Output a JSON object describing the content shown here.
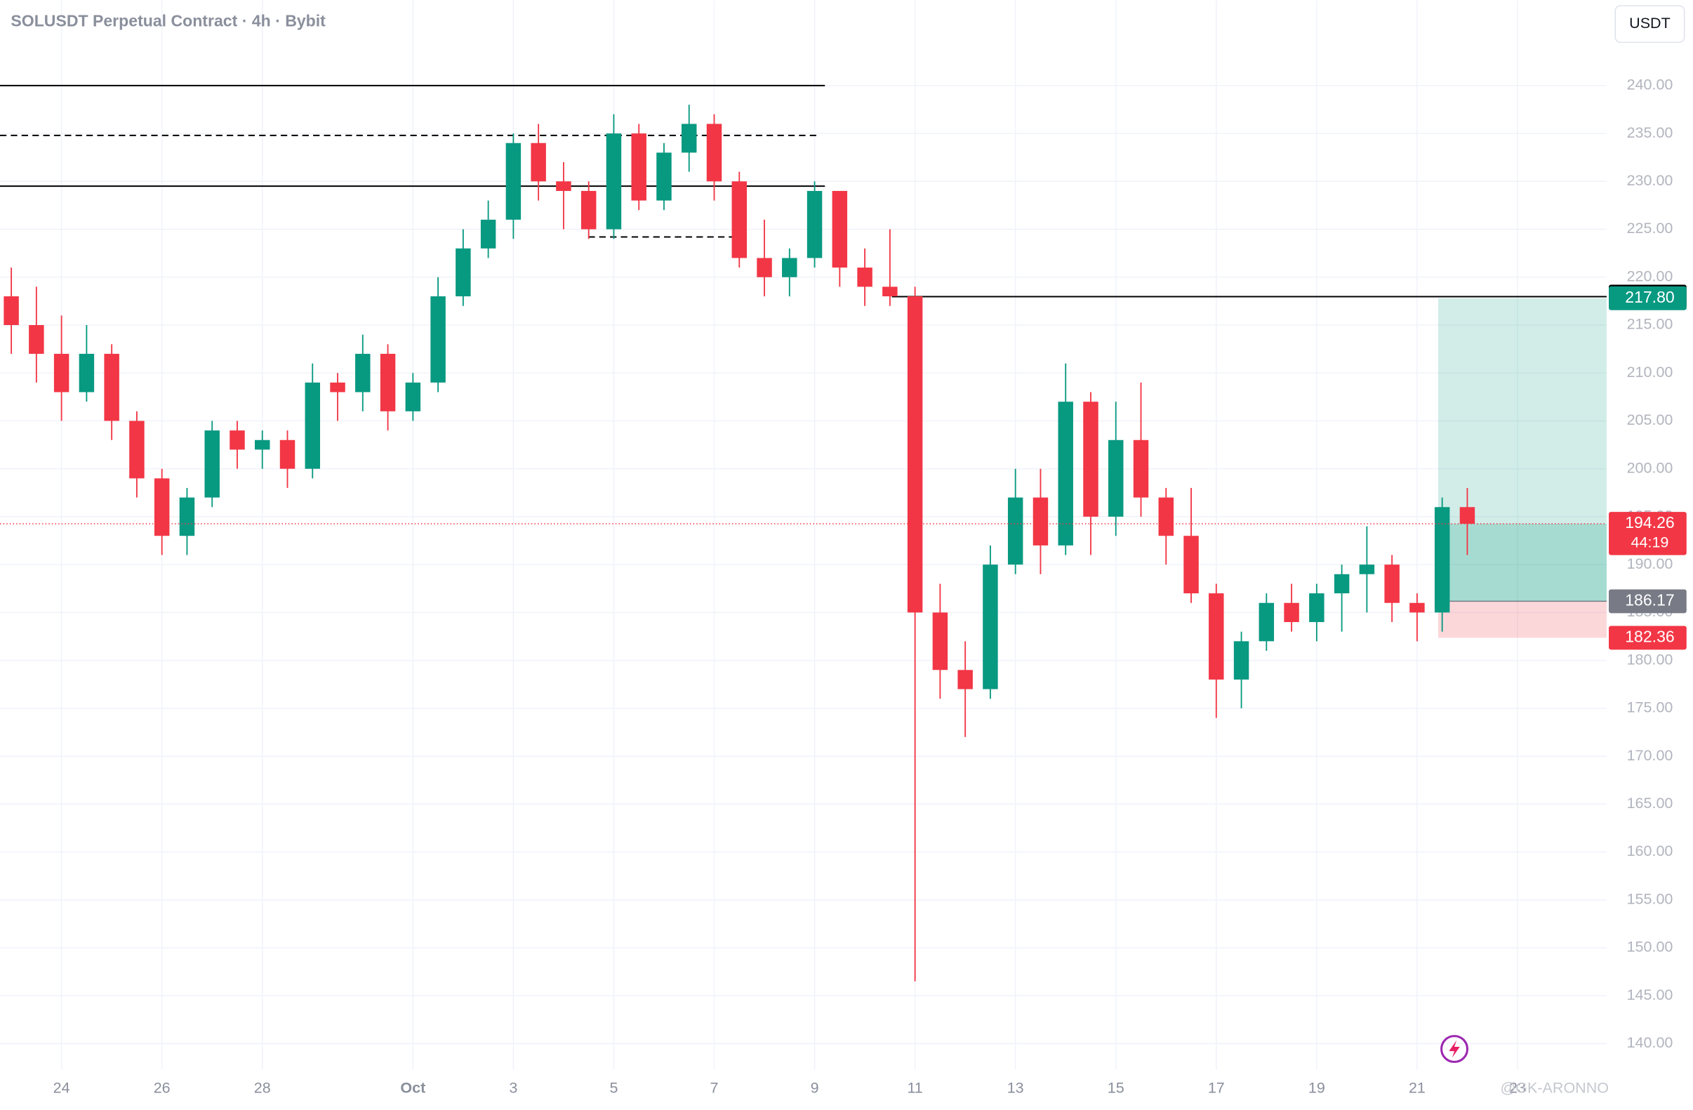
{
  "chart_data": {
    "type": "candlestick",
    "title": "SOLUSDT Perpetual Contract · 4h · Bybit",
    "currency": "USDT",
    "categories": [
      null,
      null,
      null,
      null,
      null,
      null,
      null,
      null,
      null,
      null,
      null,
      null,
      null,
      null,
      null,
      null,
      null,
      null,
      null,
      null,
      null,
      null,
      null,
      null,
      null,
      null,
      null,
      null,
      null,
      null,
      null,
      null,
      null,
      null,
      null,
      null,
      null,
      null,
      null,
      null,
      null,
      null,
      null,
      null,
      null,
      null,
      null,
      null,
      null,
      null,
      null,
      null,
      null,
      null,
      null,
      null,
      null,
      null,
      null
    ],
    "open": [
      218,
      215,
      212,
      208,
      212,
      205,
      199,
      193,
      197,
      204,
      202,
      203,
      200,
      209,
      208,
      212,
      206,
      209,
      218,
      223,
      226,
      234,
      230,
      229,
      225,
      235,
      228,
      233,
      236,
      230,
      222,
      220,
      222,
      229,
      221,
      219,
      218,
      185,
      179,
      177,
      190,
      197,
      192,
      207,
      195,
      203,
      197,
      193,
      187,
      178,
      182,
      186,
      184,
      187,
      189,
      190,
      186,
      185,
      196
    ],
    "high": [
      221,
      219,
      216,
      215,
      213,
      206,
      200,
      198,
      205,
      205,
      204,
      204,
      211,
      210,
      214,
      213,
      210,
      220,
      225,
      228,
      235,
      236,
      232,
      230,
      237,
      236,
      234,
      238,
      237,
      231,
      226,
      223,
      230,
      229,
      223,
      225,
      219,
      188,
      182,
      192,
      200,
      200,
      211,
      208,
      207,
      209,
      198,
      198,
      188,
      183,
      187,
      188,
      188,
      190,
      194,
      191,
      187,
      197,
      198
    ],
    "low": [
      212,
      209,
      205,
      207,
      203,
      197,
      191,
      191,
      196,
      200,
      200,
      198,
      199,
      205,
      206,
      204,
      205,
      208,
      217,
      222,
      224,
      228,
      225,
      224,
      224,
      227,
      227,
      231,
      228,
      221,
      218,
      218,
      221,
      219,
      217,
      217,
      146.5,
      176,
      172,
      176,
      189,
      189,
      191,
      191,
      193,
      195,
      190,
      186,
      174,
      175,
      181,
      183,
      182,
      183,
      185,
      184,
      182,
      183,
      191
    ],
    "close": [
      215,
      212,
      208,
      212,
      205,
      199,
      193,
      197,
      204,
      202,
      203,
      200,
      209,
      208,
      212,
      206,
      209,
      218,
      223,
      226,
      234,
      230,
      229,
      225,
      235,
      228,
      233,
      236,
      230,
      222,
      220,
      222,
      229,
      221,
      219,
      218,
      185,
      179,
      177,
      190,
      197,
      192,
      207,
      195,
      203,
      197,
      193,
      187,
      178,
      182,
      186,
      184,
      187,
      189,
      190,
      186,
      185,
      196,
      194.26
    ],
    "up_color": "#089981",
    "down_color": "#f23645",
    "xlim": [
      -0.45,
      63.55
    ],
    "xticks": [
      {
        "value": 2,
        "label": "24"
      },
      {
        "value": 6,
        "label": "26"
      },
      {
        "value": 10,
        "label": "28"
      },
      {
        "value": 16,
        "label": "Oct"
      },
      {
        "value": 20,
        "label": "3"
      },
      {
        "value": 24,
        "label": "5"
      },
      {
        "value": 28,
        "label": "7"
      },
      {
        "value": 32,
        "label": "9"
      },
      {
        "value": 36,
        "label": "11"
      },
      {
        "value": 40,
        "label": "13"
      },
      {
        "value": 44,
        "label": "15"
      },
      {
        "value": 48,
        "label": "17"
      },
      {
        "value": 52,
        "label": "19"
      },
      {
        "value": 56,
        "label": "21"
      },
      {
        "value": 60,
        "label": "23"
      }
    ],
    "ylim": [
      137.3,
      248.9
    ],
    "yticks": [
      {
        "value": 140,
        "label": "140.00"
      },
      {
        "value": 145,
        "label": "145.00"
      },
      {
        "value": 150,
        "label": "150.00"
      },
      {
        "value": 155,
        "label": "155.00"
      },
      {
        "value": 160,
        "label": "160.00"
      },
      {
        "value": 165,
        "label": "165.00"
      },
      {
        "value": 170,
        "label": "170.00"
      },
      {
        "value": 175,
        "label": "175.00"
      },
      {
        "value": 180,
        "label": "180.00"
      },
      {
        "value": 185,
        "label": "185.00"
      },
      {
        "value": 190,
        "label": "190.00"
      },
      {
        "value": 195,
        "label": "195.00"
      },
      {
        "value": 200,
        "label": "200.00"
      },
      {
        "value": 205,
        "label": "205.00"
      },
      {
        "value": 210,
        "label": "210.00"
      },
      {
        "value": 215,
        "label": "215.00"
      },
      {
        "value": 220,
        "label": "220.00"
      },
      {
        "value": 225,
        "label": "225.00"
      },
      {
        "value": 230,
        "label": "230.00"
      },
      {
        "value": 235,
        "label": "235.00"
      },
      {
        "value": 240,
        "label": "240.00"
      }
    ],
    "grid": true,
    "levels": [
      {
        "value": 240,
        "style": "solid"
      },
      {
        "value": 234.8,
        "style": "dashed"
      },
      {
        "value": 229.5,
        "style": "solid"
      },
      {
        "value": 224.2,
        "style": "dashed"
      },
      {
        "value": 217.97,
        "style": "solid"
      }
    ],
    "last_price": {
      "value": 194.26,
      "countdown": "44:19"
    },
    "position": {
      "target": {
        "value": 217.8,
        "label": "217.80"
      },
      "entry": 186.17,
      "stop": 182.36
    },
    "watermark": "@GK-ARONNO"
  }
}
